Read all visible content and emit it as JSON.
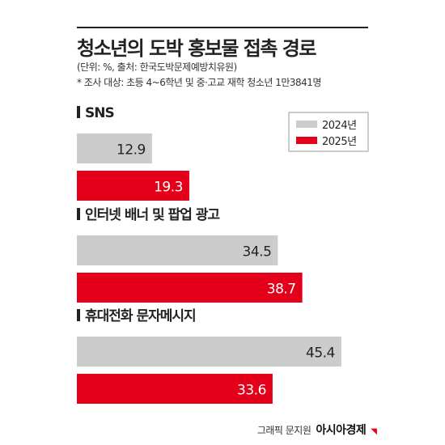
{
  "title": "청소년의 도박 홍보물 접촉 경로",
  "subtitle_lines": [
    "(단위: %, 출처: 한국도박문제예방치유원)",
    "* 조사 대상: 초등 4~6학년 및 중·고교 재학 청소년 1만3841명"
  ],
  "chart_data": {
    "type": "bar",
    "orientation": "horizontal",
    "categories": [
      "SNS",
      "인터넷 배너 및 팝업 광고",
      "휴대전화 문자메시지"
    ],
    "series": [
      {
        "name": "2024년",
        "values": [
          12.9,
          34.5,
          45.4
        ],
        "color": "#cccccc"
      },
      {
        "name": "2025년",
        "values": [
          19.3,
          38.7,
          33.6
        ],
        "color": "#e4001b"
      }
    ],
    "xlim": [
      0,
      50
    ],
    "legend_position": "top-right",
    "grid": false
  },
  "footer": {
    "credit": "그래픽 문지원",
    "brand": "아시아경제"
  }
}
